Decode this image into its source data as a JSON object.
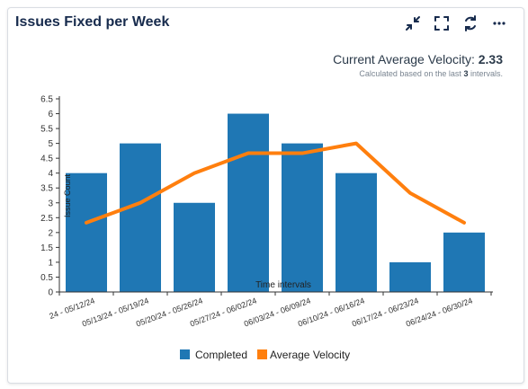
{
  "widget": {
    "title": "Issues Fixed per Week",
    "toolbar": {
      "collapse_icon": "collapse-arrows-icon",
      "fullscreen_icon": "fullscreen-icon",
      "refresh_icon": "refresh-icon",
      "more_icon": "more-horizontal-icon"
    },
    "velocity": {
      "label": "Current Average Velocity:",
      "value": "2.33",
      "sub_prefix": "Calculated based on the last",
      "sub_count": "3",
      "sub_suffix": "intervals."
    }
  },
  "chart_data": {
    "type": "bar",
    "categories": [
      "24 - 05/12/24",
      "05/13/24 - 05/19/24",
      "05/20/24 - 05/26/24",
      "05/27/24 - 06/02/24",
      "06/03/24 - 06/09/24",
      "06/10/24 - 06/16/24",
      "06/17/24 - 06/23/24",
      "06/24/24 - 06/30/24"
    ],
    "series": [
      {
        "name": "Completed",
        "type": "bar",
        "color": "#1f77b4",
        "values": [
          4,
          5,
          3,
          6,
          5,
          4,
          1,
          2
        ]
      },
      {
        "name": "Average Velocity",
        "type": "line",
        "color": "#ff7f0e",
        "values": [
          2.33,
          3,
          4,
          4.67,
          4.67,
          5,
          3.33,
          2.33
        ]
      }
    ],
    "xlabel": "Time intervals",
    "ylabel": "Issue Count",
    "ylim": [
      0,
      6.5
    ],
    "yticks": [
      "0",
      "0.5",
      "1",
      "1.5",
      "2",
      "2.5",
      "3",
      "3.5",
      "4",
      "4.5",
      "5",
      "5.5",
      "6",
      "6.5"
    ],
    "grid": false,
    "legend_position": "bottom"
  }
}
